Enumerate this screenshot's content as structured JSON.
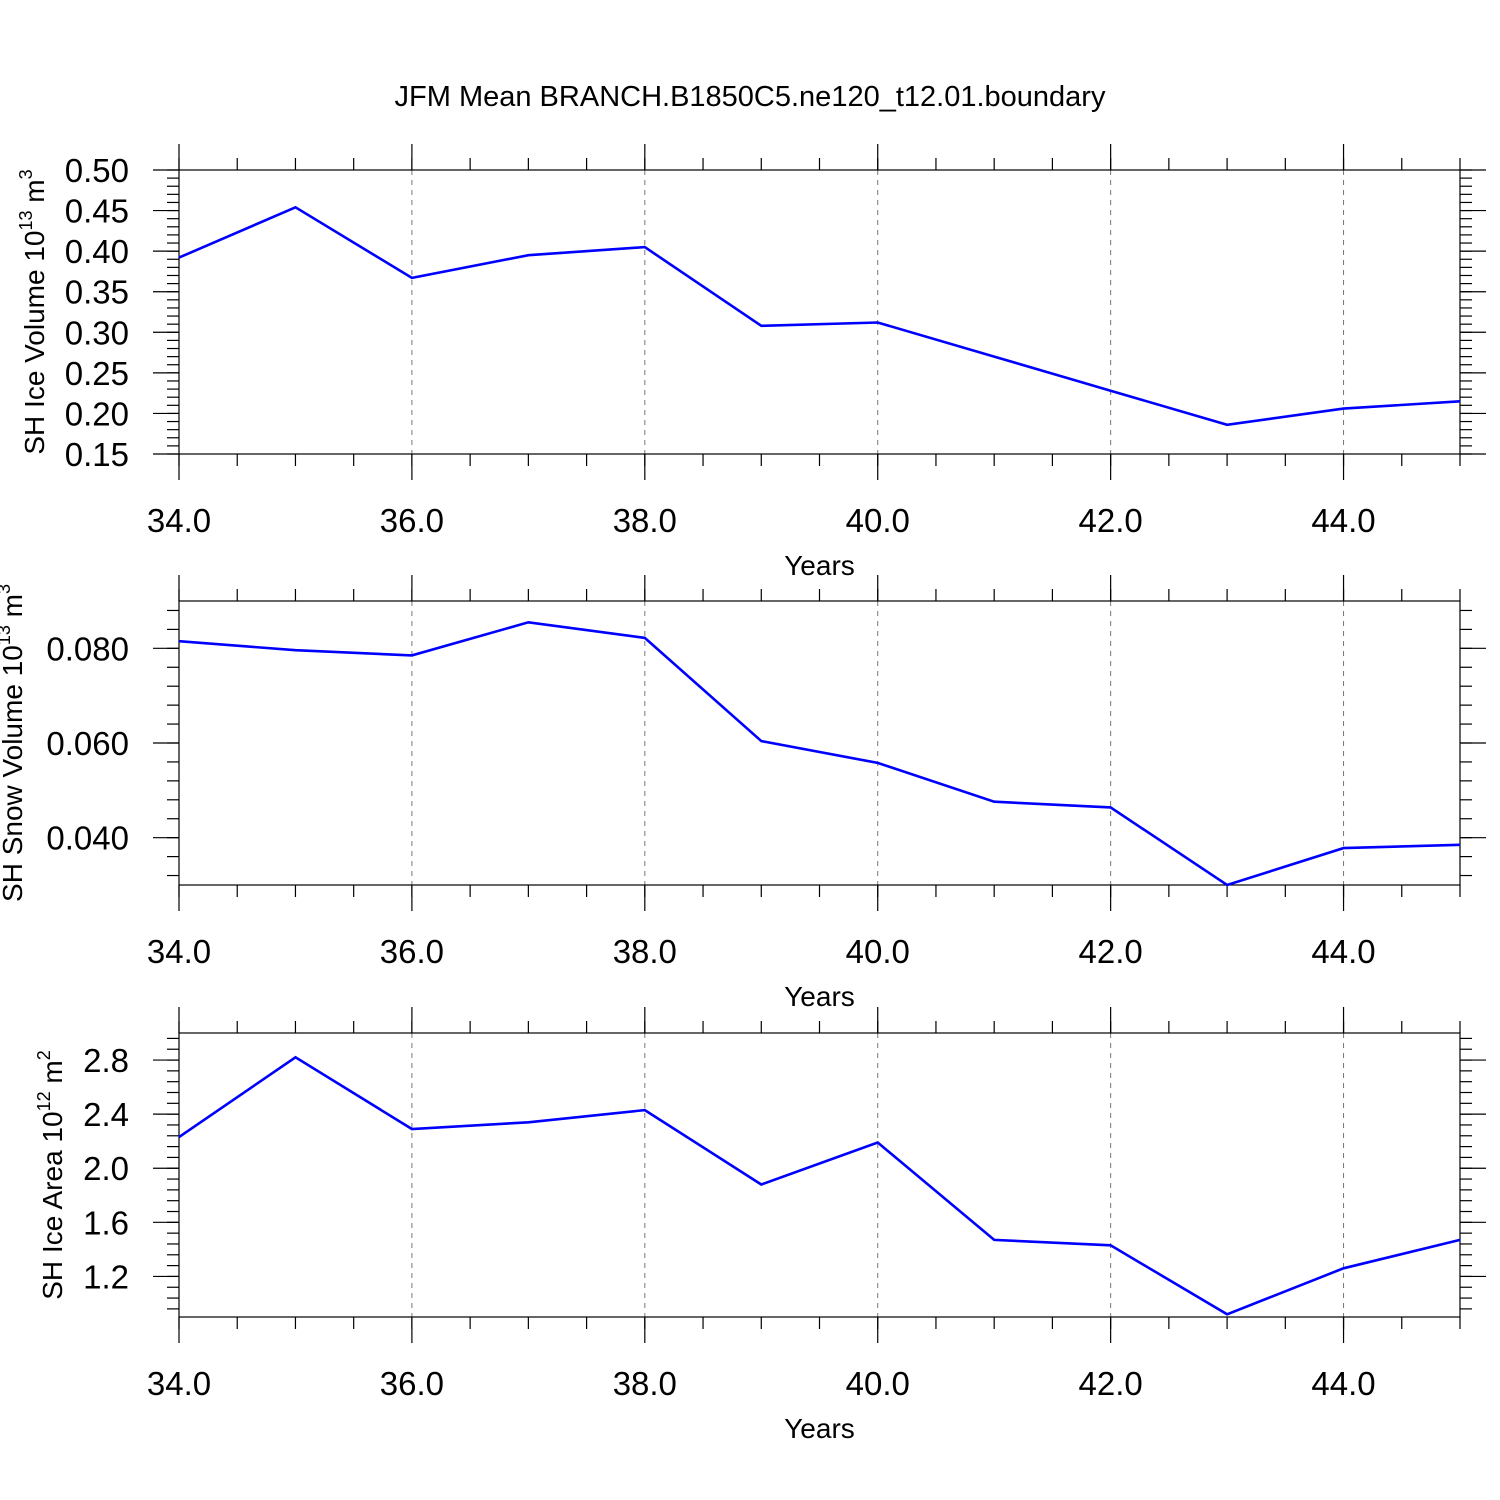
{
  "title": "JFM Mean BRANCH.B1850C5.ne120_t12.01.boundary",
  "colors": {
    "line": "#0000ff",
    "grid": "#777777",
    "axis": "#000000"
  },
  "chart_data": [
    {
      "type": "line",
      "ylabel": "SH Ice Volume 10",
      "ylabel_sup": "13",
      "ylabel_unit": " m",
      "ylabel_unit_sup": "3",
      "xlabel": "Years",
      "xlim": [
        34,
        45
      ],
      "ylim": [
        0.15,
        0.5
      ],
      "xticks": [
        34,
        36,
        38,
        40,
        42,
        44
      ],
      "xtick_labels": [
        "34.0",
        "36.0",
        "38.0",
        "40.0",
        "42.0",
        "44.0"
      ],
      "yticks": [
        0.15,
        0.2,
        0.25,
        0.3,
        0.35,
        0.4,
        0.45,
        0.5
      ],
      "ytick_labels": [
        "0.15",
        "0.20",
        "0.25",
        "0.30",
        "0.35",
        "0.40",
        "0.45",
        "0.50"
      ],
      "grid": "vertical dashed at major x ticks",
      "x": [
        34,
        35,
        36,
        37,
        38,
        39,
        40,
        41,
        42,
        43,
        44,
        45
      ],
      "y": [
        0.392,
        0.454,
        0.367,
        0.395,
        0.405,
        0.308,
        0.312,
        0.27,
        0.228,
        0.186,
        0.206,
        0.215
      ]
    },
    {
      "type": "line",
      "ylabel": "SH Snow Volume 10",
      "ylabel_sup": "13",
      "ylabel_unit": " m",
      "ylabel_unit_sup": "3",
      "xlabel": "Years",
      "xlim": [
        34,
        45
      ],
      "ylim": [
        0.03,
        0.09
      ],
      "xticks": [
        34,
        36,
        38,
        40,
        42,
        44
      ],
      "xtick_labels": [
        "34.0",
        "36.0",
        "38.0",
        "40.0",
        "42.0",
        "44.0"
      ],
      "yticks": [
        0.04,
        0.06,
        0.08
      ],
      "ytick_labels": [
        "0.040",
        "0.060",
        "0.080"
      ],
      "grid": "vertical dashed at major x ticks",
      "x": [
        34,
        35,
        36,
        37,
        38,
        39,
        40,
        41,
        42,
        43,
        44,
        45
      ],
      "y": [
        0.0815,
        0.0796,
        0.0785,
        0.0855,
        0.0822,
        0.0604,
        0.0558,
        0.0476,
        0.0464,
        0.03,
        0.0378,
        0.0385
      ]
    },
    {
      "type": "line",
      "ylabel": "SH Ice Area 10",
      "ylabel_sup": "12",
      "ylabel_unit": " m",
      "ylabel_unit_sup": "2",
      "xlabel": "Years",
      "xlim": [
        34,
        45
      ],
      "ylim": [
        0.9,
        3.0
      ],
      "xticks": [
        34,
        36,
        38,
        40,
        42,
        44
      ],
      "xtick_labels": [
        "34.0",
        "36.0",
        "38.0",
        "40.0",
        "42.0",
        "44.0"
      ],
      "yticks": [
        1.2,
        1.6,
        2.0,
        2.4,
        2.8
      ],
      "ytick_labels": [
        "1.2",
        "1.6",
        "2.0",
        "2.4",
        "2.8"
      ],
      "grid": "vertical dashed at major x ticks",
      "x": [
        34,
        35,
        36,
        37,
        38,
        39,
        40,
        41,
        42,
        43,
        44,
        45
      ],
      "y": [
        2.23,
        2.82,
        2.29,
        2.34,
        2.43,
        1.88,
        2.19,
        1.47,
        1.43,
        0.92,
        1.26,
        1.47
      ]
    }
  ]
}
